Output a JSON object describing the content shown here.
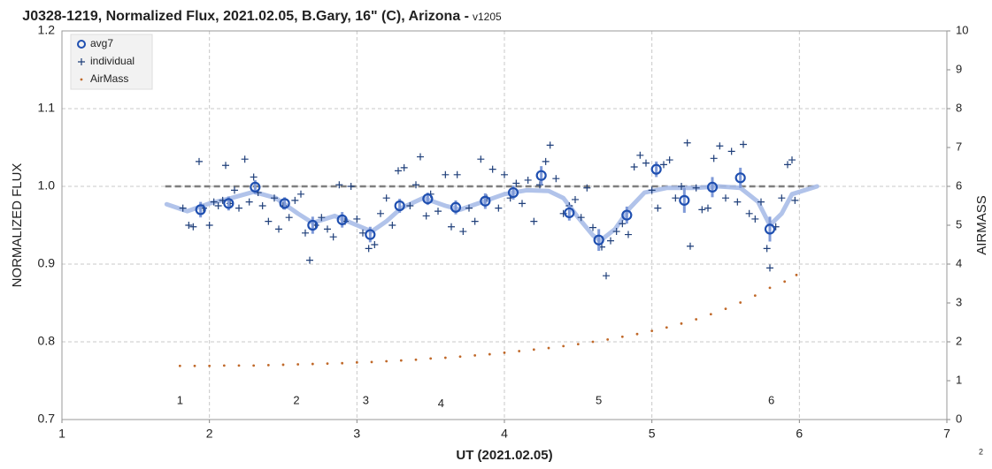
{
  "chart_data": {
    "type": "scatter",
    "title": "J0328-1219, Normalized Flux, 2021.02.05, B.Gary, 16\" (C), Arizona -",
    "title_version": "v1205",
    "xlabel": "UT (2021.02.05)",
    "ylabel": "NORMALIZED FLUX",
    "y2label": "AIRMASS",
    "xlim": [
      1,
      7
    ],
    "xticks": [
      1,
      2,
      3,
      4,
      5,
      6,
      7
    ],
    "ylim": [
      0.7,
      1.2
    ],
    "yticks": [
      0.7,
      0.8,
      0.9,
      {
        "value": 1,
        "label": "1.0"
      },
      1.1,
      1.2
    ],
    "y2lim": [
      0,
      10
    ],
    "y2ticks": [
      0,
      1,
      2,
      3,
      4,
      5,
      6,
      7,
      8,
      9,
      10
    ],
    "grid": true,
    "legend": "top-left",
    "reference_line": {
      "y": 1,
      "x": [
        1.7,
        6.1
      ],
      "color": "#7f7f7f"
    },
    "smooth_line": {
      "color": "#a9bde8",
      "x": [
        1.71,
        1.85,
        2.0,
        2.15,
        2.3,
        2.45,
        2.6,
        2.7,
        2.85,
        3.0,
        3.1,
        3.2,
        3.3,
        3.45,
        3.6,
        3.7,
        3.85,
        4.0,
        4.15,
        4.3,
        4.4,
        4.5,
        4.6,
        4.65,
        4.75,
        4.85,
        4.95,
        5.1,
        5.3,
        5.45,
        5.6,
        5.72,
        5.8,
        5.88,
        5.95,
        6.12
      ],
      "y": [
        0.977,
        0.968,
        0.978,
        0.985,
        0.993,
        0.985,
        0.965,
        0.953,
        0.962,
        0.95,
        0.942,
        0.955,
        0.972,
        0.985,
        0.975,
        0.97,
        0.98,
        0.99,
        0.995,
        0.994,
        0.985,
        0.96,
        0.937,
        0.93,
        0.945,
        0.972,
        0.992,
        0.998,
        0.998,
        1.0,
        0.998,
        0.98,
        0.95,
        0.965,
        0.99,
        1.0
      ]
    },
    "series": [
      {
        "name": "avg7",
        "marker": "circle",
        "color": "#1f4fb0",
        "error_color": "#7f9ad8",
        "x": [
          1.94,
          2.13,
          2.31,
          2.51,
          2.7,
          2.9,
          3.09,
          3.29,
          3.48,
          3.67,
          3.87,
          4.06,
          4.25,
          4.44,
          4.64,
          4.83,
          5.03,
          5.22,
          5.41,
          5.6,
          5.8
        ],
        "values": [
          0.97,
          0.978,
          0.999,
          0.978,
          0.95,
          0.957,
          0.938,
          0.975,
          0.984,
          0.973,
          0.981,
          0.992,
          1.014,
          0.966,
          0.931,
          0.963,
          1.022,
          0.982,
          0.999,
          1.011,
          0.945
        ],
        "errors": [
          0.01,
          0.009,
          0.009,
          0.008,
          0.011,
          0.01,
          0.01,
          0.009,
          0.008,
          0.009,
          0.01,
          0.009,
          0.012,
          0.01,
          0.014,
          0.011,
          0.01,
          0.016,
          0.013,
          0.013,
          0.016
        ]
      },
      {
        "name": "individual",
        "marker": "plus",
        "color": "#1f3f7a",
        "x": [
          1.82,
          1.86,
          1.89,
          1.93,
          1.96,
          2.0,
          2.03,
          2.06,
          2.09,
          2.11,
          2.14,
          2.17,
          2.2,
          2.24,
          2.27,
          2.3,
          2.33,
          2.36,
          2.4,
          2.44,
          2.47,
          2.5,
          2.54,
          2.58,
          2.62,
          2.65,
          2.68,
          2.72,
          2.76,
          2.8,
          2.84,
          2.88,
          2.92,
          2.96,
          3.0,
          3.04,
          3.08,
          3.12,
          3.16,
          3.2,
          3.24,
          3.28,
          3.32,
          3.36,
          3.4,
          3.43,
          3.47,
          3.5,
          3.55,
          3.6,
          3.64,
          3.68,
          3.72,
          3.76,
          3.8,
          3.84,
          3.88,
          3.92,
          3.96,
          4.0,
          4.04,
          4.08,
          4.12,
          4.16,
          4.2,
          4.24,
          4.28,
          4.31,
          4.35,
          4.4,
          4.44,
          4.48,
          4.52,
          4.56,
          4.6,
          4.66,
          4.69,
          4.72,
          4.76,
          4.8,
          4.84,
          4.88,
          4.92,
          4.96,
          5.0,
          5.04,
          5.08,
          5.12,
          5.16,
          5.2,
          5.24,
          5.26,
          5.3,
          5.34,
          5.38,
          5.42,
          5.46,
          5.5,
          5.54,
          5.58,
          5.62,
          5.66,
          5.7,
          5.74,
          5.78,
          5.8,
          5.84,
          5.88,
          5.92,
          5.95,
          5.97
        ],
        "values": [
          0.972,
          0.95,
          0.948,
          1.032,
          0.972,
          0.95,
          0.98,
          0.975,
          0.982,
          1.027,
          0.978,
          0.995,
          0.972,
          1.035,
          0.98,
          1.012,
          0.992,
          0.975,
          0.955,
          0.985,
          0.945,
          0.975,
          0.96,
          0.982,
          0.99,
          0.94,
          0.905,
          0.95,
          0.96,
          0.945,
          0.935,
          1.002,
          0.955,
          1.0,
          0.958,
          0.94,
          0.92,
          0.925,
          0.965,
          0.985,
          0.95,
          1.02,
          1.024,
          0.975,
          1.002,
          1.038,
          0.962,
          0.99,
          0.968,
          1.015,
          0.948,
          1.015,
          0.942,
          0.972,
          0.955,
          1.035,
          0.985,
          1.022,
          0.972,
          1.015,
          0.985,
          1.004,
          0.978,
          1.008,
          0.955,
          1.002,
          1.032,
          1.053,
          1.01,
          0.965,
          0.975,
          0.983,
          0.96,
          0.998,
          0.947,
          0.922,
          0.885,
          0.93,
          0.942,
          0.952,
          0.938,
          1.025,
          1.04,
          1.03,
          0.995,
          0.972,
          1.028,
          1.034,
          0.985,
          1.0,
          1.056,
          0.923,
          0.998,
          0.97,
          0.972,
          1.036,
          1.052,
          0.985,
          1.045,
          0.98,
          1.054,
          0.965,
          0.958,
          0.98,
          0.92,
          0.895,
          0.948,
          0.985,
          1.028,
          1.034,
          0.982
        ]
      },
      {
        "name": "AirMass",
        "marker": "dot",
        "color": "#c0692a",
        "axis": "y2",
        "x": [
          1.8,
          1.9,
          2.0,
          2.1,
          2.2,
          2.3,
          2.4,
          2.5,
          2.6,
          2.7,
          2.8,
          2.9,
          3.0,
          3.1,
          3.2,
          3.3,
          3.4,
          3.5,
          3.6,
          3.7,
          3.8,
          3.9,
          4.0,
          4.1,
          4.2,
          4.3,
          4.4,
          4.5,
          4.6,
          4.7,
          4.8,
          4.9,
          5.0,
          5.1,
          5.2,
          5.3,
          5.4,
          5.5,
          5.6,
          5.7,
          5.8,
          5.9,
          5.98
        ],
        "values": [
          1.38,
          1.38,
          1.38,
          1.39,
          1.39,
          1.39,
          1.4,
          1.41,
          1.42,
          1.43,
          1.44,
          1.45,
          1.47,
          1.48,
          1.5,
          1.52,
          1.54,
          1.57,
          1.59,
          1.62,
          1.65,
          1.68,
          1.72,
          1.76,
          1.8,
          1.84,
          1.89,
          1.94,
          2.0,
          2.06,
          2.13,
          2.2,
          2.28,
          2.37,
          2.47,
          2.58,
          2.71,
          2.85,
          3.01,
          3.19,
          3.39,
          3.55,
          3.72
        ]
      }
    ],
    "annotations": [
      {
        "text": "1",
        "x": 1.8,
        "y": 0.724
      },
      {
        "text": "2",
        "x": 2.59,
        "y": 0.724
      },
      {
        "text": "3",
        "x": 3.06,
        "y": 0.724
      },
      {
        "text": "4",
        "x": 3.57,
        "y": 0.72
      },
      {
        "text": "5",
        "x": 4.64,
        "y": 0.724
      },
      {
        "text": "6",
        "x": 5.81,
        "y": 0.724
      }
    ],
    "page_number": "2"
  }
}
